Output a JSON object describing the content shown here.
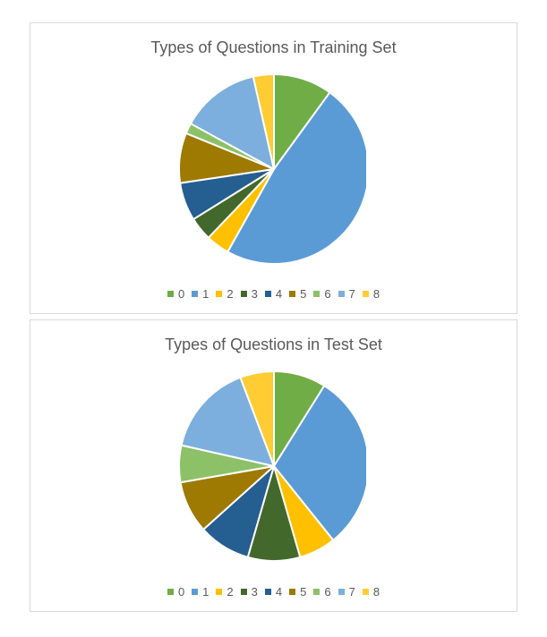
{
  "chart_data": [
    {
      "type": "pie",
      "title": "Types of Questions in Training Set",
      "categories": [
        "0",
        "1",
        "2",
        "3",
        "4",
        "5",
        "6",
        "7",
        "8"
      ],
      "values": [
        10,
        48,
        4,
        4,
        6.5,
        8.5,
        1.8,
        13.5,
        3.5
      ],
      "colors": [
        "#70ad47",
        "#5b9bd5",
        "#ffc000",
        "#43682b",
        "#255e91",
        "#9e7a00",
        "#8cc168",
        "#7cafdd",
        "#ffcd33"
      ],
      "legend_position": "bottom"
    },
    {
      "type": "pie",
      "title": "Types of Questions in Test Set",
      "categories": [
        "0",
        "1",
        "2",
        "3",
        "4",
        "5",
        "6",
        "7",
        "8"
      ],
      "values": [
        8.5,
        29,
        6,
        8.5,
        8.5,
        8.5,
        6,
        15,
        5.5
      ],
      "colors": [
        "#70ad47",
        "#5b9bd5",
        "#ffc000",
        "#43682b",
        "#255e91",
        "#9e7a00",
        "#8cc168",
        "#7cafdd",
        "#ffcd33"
      ],
      "legend_position": "bottom"
    }
  ]
}
